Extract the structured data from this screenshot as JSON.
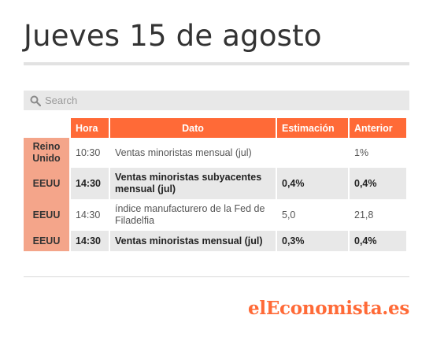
{
  "title": "Jueves 15 de agosto",
  "search": {
    "placeholder": "Search"
  },
  "table": {
    "headers": {
      "hora": "Hora",
      "dato": "Dato",
      "estimacion": "Estimación",
      "anterior": "Anterior"
    },
    "rows": [
      {
        "country": "Reino Unido",
        "hora": "10:30",
        "dato": "Ventas minoristas mensual (jul)",
        "estimacion": "",
        "anterior": "1%"
      },
      {
        "country": "EEUU",
        "hora": "14:30",
        "dato": "Ventas minoristas subyacentes mensual (jul)",
        "estimacion": "0,4%",
        "anterior": "0,4%"
      },
      {
        "country": "EEUU",
        "hora": "14:30",
        "dato": "índice manufacturero de la Fed de Filadelfia",
        "estimacion": "5,0",
        "anterior": "21,8"
      },
      {
        "country": "EEUU",
        "hora": "14:30",
        "dato": "Ventas minoristas mensual (jul)",
        "estimacion": "0,3%",
        "anterior": "0,4%"
      }
    ]
  },
  "logo": "elEconomista.es",
  "colors": {
    "accent": "#ff6a37",
    "country_bg": "#f4a58a",
    "row_alt": "#e8e8e8"
  },
  "icons": {
    "search": "search-icon"
  }
}
